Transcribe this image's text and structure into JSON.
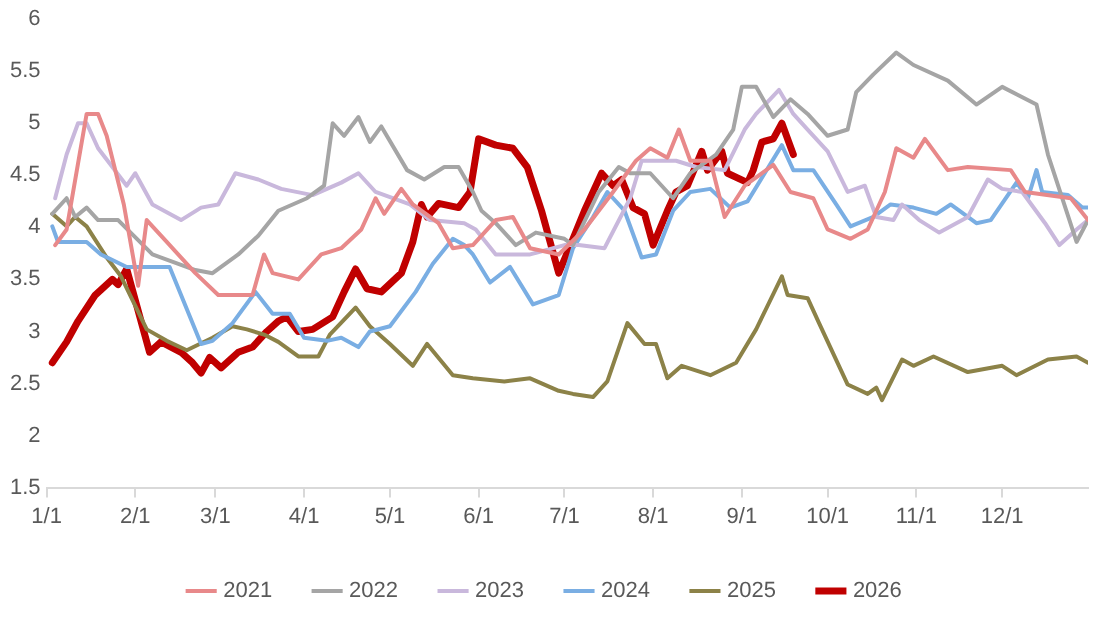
{
  "chart_data": {
    "type": "line",
    "legend": "bottom",
    "grid": false,
    "marker": "none",
    "line_style": "solid",
    "xlim": [
      "--01-01",
      "--12-31"
    ],
    "xticks": [
      {
        "value": "--01-01",
        "label": "1/1"
      },
      {
        "value": "--02-01",
        "label": "2/1"
      },
      {
        "value": "--03-01",
        "label": "3/1"
      },
      {
        "value": "--04-01",
        "label": "4/1"
      },
      {
        "value": "--05-01",
        "label": "5/1"
      },
      {
        "value": "--06-01",
        "label": "6/1"
      },
      {
        "value": "--07-01",
        "label": "7/1"
      },
      {
        "value": "--08-01",
        "label": "8/1"
      },
      {
        "value": "--09-01",
        "label": "9/1"
      },
      {
        "value": "--10-01",
        "label": "10/1"
      },
      {
        "value": "--11-01",
        "label": "11/1"
      },
      {
        "value": "--12-01",
        "label": "12/1"
      }
    ],
    "ylim": [
      1.5,
      6
    ],
    "yticks": [
      1.5,
      2,
      2.5,
      3,
      3.5,
      4,
      4.5,
      5,
      5.5,
      6
    ],
    "series": [
      {
        "name": "2021",
        "color": "#e8898a",
        "x": [
          "--01-04",
          "--01-08",
          "--01-15",
          "--01-19",
          "--01-22",
          "--01-28",
          "--02-02",
          "--02-05",
          "--02-12",
          "--02-22",
          "--03-02",
          "--03-14",
          "--03-18",
          "--03-21",
          "--03-30",
          "--04-07",
          "--04-14",
          "--04-21",
          "--04-26",
          "--04-29",
          "--05-05",
          "--05-09",
          "--05-18",
          "--05-23",
          "--05-30",
          "--06-07",
          "--06-13",
          "--06-19",
          "--06-29",
          "--07-08",
          "--07-18",
          "--07-26",
          "--07-31",
          "--08-06",
          "--08-10",
          "--08-14",
          "--08-21",
          "--08-26",
          "--09-02",
          "--09-12",
          "--09-18",
          "--09-26",
          "--10-01",
          "--10-09",
          "--10-15",
          "--10-21",
          "--10-25",
          "--10-31",
          "--11-04",
          "--11-12",
          "--11-19",
          "--12-04",
          "--12-09",
          "--12-25",
          "--12-31"
        ],
        "values": [
          3.83,
          3.98,
          5.09,
          5.09,
          4.88,
          4.22,
          3.44,
          4.07,
          3.86,
          3.56,
          3.35,
          3.35,
          3.74,
          3.56,
          3.5,
          3.74,
          3.8,
          3.98,
          4.28,
          4.13,
          4.37,
          4.22,
          4.04,
          3.8,
          3.83,
          4.07,
          4.1,
          3.8,
          3.74,
          3.98,
          4.34,
          4.64,
          4.76,
          4.67,
          4.94,
          4.64,
          4.64,
          4.1,
          4.4,
          4.6,
          4.34,
          4.28,
          3.98,
          3.89,
          3.98,
          4.34,
          4.76,
          4.67,
          4.85,
          4.55,
          4.58,
          4.55,
          4.34,
          4.28,
          4.07
        ]
      },
      {
        "name": "2022",
        "color": "#a5a5a5",
        "x": [
          "--01-03",
          "--01-08",
          "--01-11",
          "--01-15",
          "--01-19",
          "--01-26",
          "--02-07",
          "--02-22",
          "--02-28",
          "--03-09",
          "--03-16",
          "--03-23",
          "--04-02",
          "--04-08",
          "--04-11",
          "--04-15",
          "--04-20",
          "--04-24",
          "--04-28",
          "--05-07",
          "--05-13",
          "--05-20",
          "--05-25",
          "--05-30",
          "--06-02",
          "--06-07",
          "--06-14",
          "--06-21",
          "--07-01",
          "--07-04",
          "--07-13",
          "--07-20",
          "--07-24",
          "--07-31",
          "--08-08",
          "--08-14",
          "--08-23",
          "--08-29",
          "--09-01",
          "--09-06",
          "--09-12",
          "--09-18",
          "--09-24",
          "--10-01",
          "--10-08",
          "--10-11",
          "--10-17",
          "--10-25",
          "--10-31",
          "--11-12",
          "--11-22",
          "--12-01",
          "--12-13",
          "--12-17",
          "--12-27",
          "--12-31"
        ],
        "values": [
          4.13,
          4.28,
          4.1,
          4.19,
          4.07,
          4.07,
          3.74,
          3.59,
          3.56,
          3.74,
          3.92,
          4.16,
          4.28,
          4.4,
          5.0,
          4.88,
          5.06,
          4.82,
          4.97,
          4.55,
          4.46,
          4.58,
          4.58,
          4.34,
          4.16,
          4.04,
          3.83,
          3.95,
          3.89,
          3.83,
          4.34,
          4.58,
          4.52,
          4.52,
          4.28,
          4.52,
          4.7,
          4.94,
          5.35,
          5.35,
          5.06,
          5.23,
          5.09,
          4.88,
          4.94,
          5.3,
          5.47,
          5.68,
          5.56,
          5.41,
          5.18,
          5.35,
          5.18,
          4.7,
          3.86,
          4.07
        ]
      },
      {
        "name": "2023",
        "color": "#c9b8dc",
        "x": [
          "--01-04",
          "--01-08",
          "--01-12",
          "--01-15",
          "--01-19",
          "--01-29",
          "--02-01",
          "--02-07",
          "--02-17",
          "--02-24",
          "--03-02",
          "--03-08",
          "--03-16",
          "--03-24",
          "--04-04",
          "--04-14",
          "--04-20",
          "--04-26",
          "--05-08",
          "--05-15",
          "--05-27",
          "--05-31",
          "--06-07",
          "--06-19",
          "--07-01",
          "--07-06",
          "--07-15",
          "--07-24",
          "--07-28",
          "--08-09",
          "--08-16",
          "--08-26",
          "--09-02",
          "--09-06",
          "--09-14",
          "--09-19",
          "--09-24",
          "--10-01",
          "--10-08",
          "--10-14",
          "--10-18",
          "--10-24",
          "--10-27",
          "--11-02",
          "--11-09",
          "--11-19",
          "--11-26",
          "--12-01",
          "--12-08",
          "--12-16",
          "--12-21",
          "--12-27",
          "--12-31"
        ],
        "values": [
          4.28,
          4.7,
          5.0,
          5.0,
          4.76,
          4.4,
          4.52,
          4.22,
          4.07,
          4.19,
          4.22,
          4.52,
          4.46,
          4.37,
          4.31,
          4.43,
          4.52,
          4.34,
          4.22,
          4.07,
          4.04,
          3.98,
          3.74,
          3.74,
          3.83,
          3.83,
          3.8,
          4.28,
          4.64,
          4.64,
          4.58,
          4.55,
          4.94,
          5.09,
          5.32,
          5.09,
          4.94,
          4.73,
          4.34,
          4.4,
          4.1,
          4.07,
          4.22,
          4.07,
          3.95,
          4.1,
          4.46,
          4.37,
          4.34,
          4.04,
          3.83,
          3.98,
          4.07
        ]
      },
      {
        "name": "2024",
        "color": "#7aaee3",
        "x": [
          "--01-03",
          "--01-05",
          "--01-15",
          "--01-20",
          "--01-29",
          "--02-13",
          "--02-24",
          "--02-28",
          "--03-07",
          "--03-15",
          "--03-21",
          "--03-27",
          "--04-01",
          "--04-09",
          "--04-14",
          "--04-20",
          "--04-24",
          "--05-01",
          "--05-10",
          "--05-16",
          "--05-23",
          "--05-27",
          "--05-30",
          "--06-05",
          "--06-12",
          "--06-20",
          "--06-29",
          "--07-04",
          "--07-11",
          "--07-16",
          "--07-22",
          "--07-28",
          "--08-02",
          "--08-08",
          "--08-14",
          "--08-21",
          "--08-28",
          "--09-03",
          "--09-09",
          "--09-15",
          "--09-19",
          "--09-26",
          "--10-04",
          "--10-09",
          "--10-17",
          "--10-23",
          "--10-31",
          "--11-08",
          "--11-13",
          "--11-22",
          "--11-27",
          "--12-06",
          "--12-10",
          "--12-13",
          "--12-15",
          "--12-24",
          "--12-29",
          "--12-31"
        ],
        "values": [
          4.01,
          3.86,
          3.86,
          3.74,
          3.62,
          3.62,
          2.88,
          2.91,
          3.08,
          3.38,
          3.17,
          3.17,
          2.94,
          2.91,
          2.94,
          2.85,
          3.0,
          3.05,
          3.38,
          3.65,
          3.89,
          3.83,
          3.74,
          3.47,
          3.62,
          3.26,
          3.35,
          3.8,
          4.1,
          4.34,
          4.16,
          3.71,
          3.74,
          4.16,
          4.34,
          4.37,
          4.19,
          4.25,
          4.52,
          4.79,
          4.55,
          4.55,
          4.22,
          4.01,
          4.1,
          4.22,
          4.19,
          4.13,
          4.22,
          4.04,
          4.07,
          4.43,
          4.28,
          4.55,
          4.34,
          4.31,
          4.19,
          4.19
        ]
      },
      {
        "name": "2025",
        "color": "#8c8248",
        "x": [
          "--01-03",
          "--01-08",
          "--01-11",
          "--01-15",
          "--01-22",
          "--01-27",
          "--02-05",
          "--02-12",
          "--02-19",
          "--02-28",
          "--03-07",
          "--03-12",
          "--03-18",
          "--03-23",
          "--03-30",
          "--04-06",
          "--04-10",
          "--04-19",
          "--04-24",
          "--05-01",
          "--05-09",
          "--05-14",
          "--05-23",
          "--05-30",
          "--06-10",
          "--06-19",
          "--06-29",
          "--07-04",
          "--07-11",
          "--07-16",
          "--07-23",
          "--07-29",
          "--08-02",
          "--08-06",
          "--08-11",
          "--08-21",
          "--08-30",
          "--09-06",
          "--09-15",
          "--09-17",
          "--09-24",
          "--09-28",
          "--10-08",
          "--10-15",
          "--10-18",
          "--10-20",
          "--10-27",
          "--10-31",
          "--11-07",
          "--11-19",
          "--12-01",
          "--12-06",
          "--12-17",
          "--12-27",
          "--12-31"
        ],
        "values": [
          4.13,
          4.01,
          4.1,
          4.01,
          3.71,
          3.53,
          3.02,
          2.91,
          2.82,
          2.94,
          3.05,
          3.02,
          2.97,
          2.9,
          2.76,
          2.76,
          2.97,
          3.23,
          3.05,
          2.88,
          2.67,
          2.88,
          2.58,
          2.55,
          2.52,
          2.55,
          2.43,
          2.4,
          2.37,
          2.52,
          3.08,
          2.88,
          2.88,
          2.55,
          2.67,
          2.58,
          2.7,
          3.02,
          3.53,
          3.35,
          3.32,
          3.08,
          2.49,
          2.4,
          2.46,
          2.34,
          2.73,
          2.67,
          2.76,
          2.61,
          2.67,
          2.58,
          2.73,
          2.76,
          2.7
        ]
      },
      {
        "name": "2026",
        "color": "#c00000",
        "x": [
          "--01-03",
          "--01-08",
          "--01-12",
          "--01-18",
          "--01-24",
          "--01-26",
          "--01-29",
          "--02-06",
          "--02-10",
          "--02-17",
          "--02-21",
          "--02-24",
          "--02-27",
          "--03-03",
          "--03-09",
          "--03-14",
          "--03-19",
          "--03-23",
          "--03-26",
          "--03-30",
          "--04-04",
          "--04-11",
          "--04-15",
          "--04-19",
          "--04-23",
          "--04-28",
          "--05-05",
          "--05-09",
          "--05-12",
          "--05-14",
          "--05-18",
          "--05-25",
          "--05-29",
          "--06-01",
          "--06-07",
          "--06-13",
          "--06-18",
          "--06-23",
          "--06-29",
          "--07-04",
          "--07-08",
          "--07-14",
          "--07-18",
          "--07-21",
          "--07-25",
          "--07-29",
          "--08-01",
          "--08-06",
          "--08-09",
          "--08-13",
          "--08-18",
          "--08-20",
          "--08-25",
          "--08-27",
          "--09-03",
          "--09-05",
          "--09-08",
          "--09-12",
          "--09-15",
          "--09-19"
        ],
        "values": [
          2.7,
          2.9,
          3.1,
          3.35,
          3.5,
          3.45,
          3.6,
          2.8,
          2.9,
          2.8,
          2.7,
          2.6,
          2.75,
          2.65,
          2.8,
          2.85,
          3.0,
          3.1,
          3.14,
          3.0,
          3.02,
          3.14,
          3.38,
          3.6,
          3.41,
          3.38,
          3.56,
          3.86,
          4.22,
          4.1,
          4.23,
          4.19,
          4.34,
          4.85,
          4.79,
          4.76,
          4.58,
          4.16,
          3.56,
          3.89,
          4.16,
          4.52,
          4.4,
          4.46,
          4.19,
          4.13,
          3.83,
          4.16,
          4.34,
          4.4,
          4.73,
          4.55,
          4.73,
          4.52,
          4.43,
          4.55,
          4.82,
          4.85,
          5.0,
          4.7
        ]
      }
    ]
  }
}
